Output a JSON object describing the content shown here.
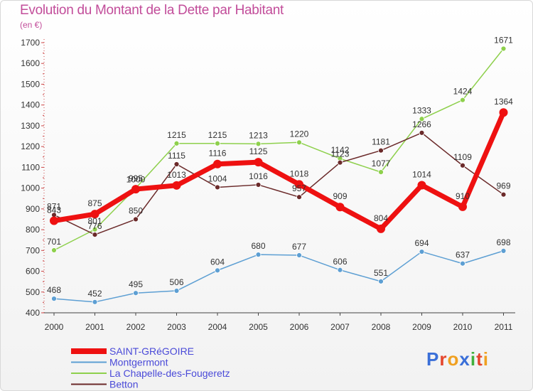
{
  "title": "Evolution du Montant de la Dette par Habitant",
  "subtitle": "(en €)",
  "logo": {
    "letters": [
      "P",
      "r",
      "o",
      "x",
      "i",
      "t",
      "i"
    ],
    "colors": [
      "#3a6fd8",
      "#e5462d",
      "#f0a020",
      "#3a6fd8",
      "#42b03c",
      "#e5462d",
      "#f0a020"
    ]
  },
  "chart_data": {
    "type": "line",
    "title": "Evolution du Montant de la Dette par Habitant",
    "ylabel": "(en €)",
    "x": [
      "2000",
      "2001",
      "2002",
      "2003",
      "2004",
      "2005",
      "2006",
      "2007",
      "2008",
      "2009",
      "2010",
      "2011"
    ],
    "ylim": [
      400,
      1700
    ],
    "yticks": [
      400,
      500,
      600,
      700,
      800,
      900,
      1000,
      1100,
      1200,
      1300,
      1400,
      1500,
      1600,
      1700
    ],
    "grid": "none",
    "legend": "bottom-left",
    "series": [
      {
        "name": "Montgermont",
        "color": "#5d9fd3",
        "values": [
          468,
          452,
          495,
          506,
          604,
          680,
          677,
          606,
          551,
          694,
          637,
          698
        ]
      },
      {
        "name": "La Chapelle-des-Fougeretz",
        "color": "#8ed04c",
        "values": [
          701,
          801,
          1000,
          1215,
          1215,
          1213,
          1220,
          1142,
          1077,
          1333,
          1424,
          1671
        ]
      },
      {
        "name": "Betton",
        "color": "#6b2a2a",
        "values": [
          871,
          776,
          850,
          1115,
          1004,
          1016,
          957,
          1123,
          1181,
          1266,
          1109,
          969
        ]
      },
      {
        "name": "SAINT-GRéGOIRE",
        "color": "#ee1111",
        "values": [
          843,
          875,
          995,
          1013,
          1116,
          1125,
          1018,
          909,
          804,
          1014,
          910,
          1364
        ]
      }
    ],
    "legend_order": [
      "SAINT-GRéGOIRE",
      "Montgermont",
      "La Chapelle-des-Fougeretz",
      "Betton"
    ]
  }
}
